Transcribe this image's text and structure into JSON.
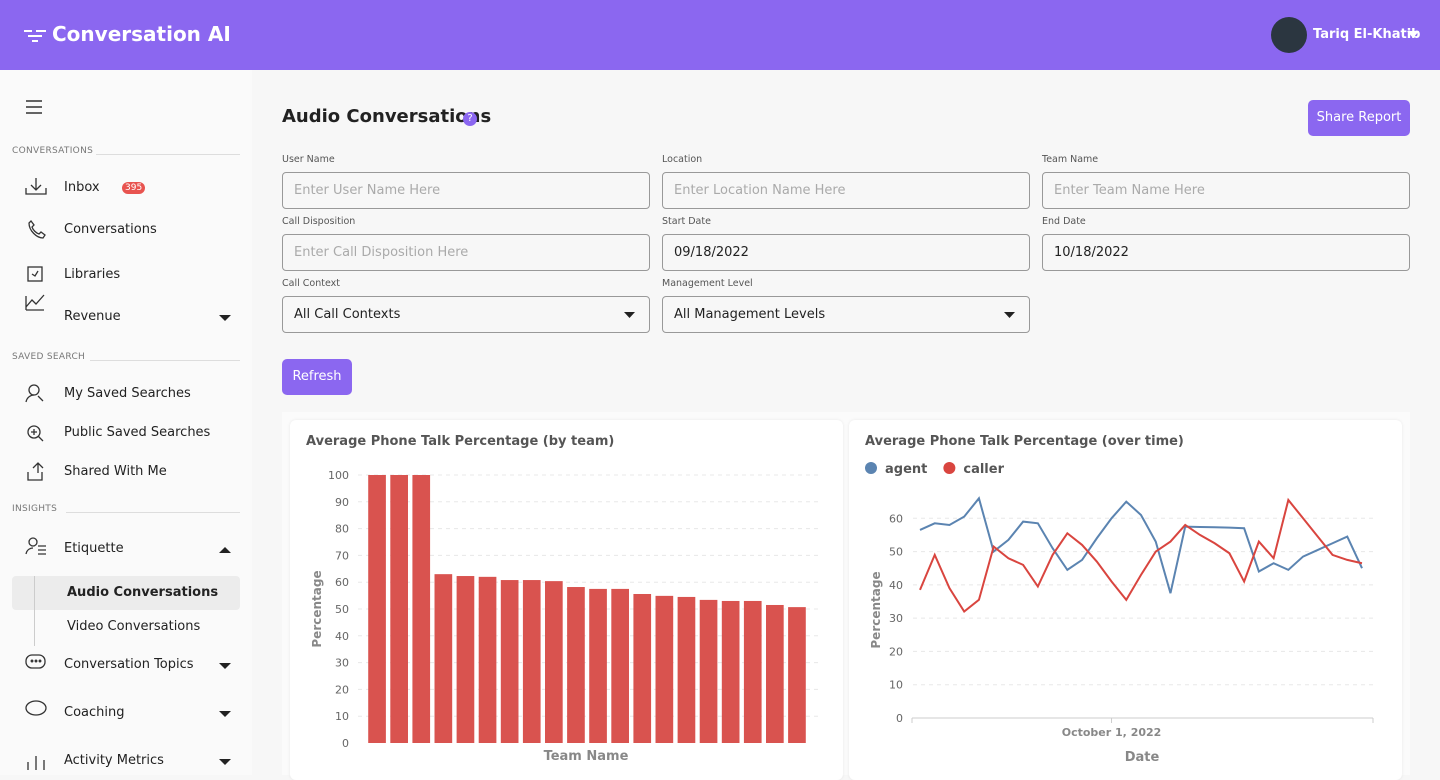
{
  "header": {
    "brand": "Conversation AI",
    "user": "Tariq El-Khatib"
  },
  "sidebar": {
    "conversations": {
      "title": "CONVERSATIONS",
      "items": [
        "Inbox",
        "Conversations",
        "Libraries",
        "Revenue"
      ],
      "badge": "395"
    },
    "saved_search": {
      "title": "SAVED SEARCH",
      "items": [
        "My Saved Searches",
        "Public Saved Searches",
        "Shared With Me"
      ]
    },
    "insights": {
      "title": "INSIGHTS",
      "items": [
        "Etiquette",
        "Conversation Topics",
        "Coaching",
        "Activity Metrics"
      ],
      "etiquette_sub": [
        "Audio Conversations",
        "Video Conversations"
      ]
    }
  },
  "page": {
    "title": "Audio Conversations",
    "share": "Share Report",
    "refresh": "Refresh"
  },
  "form": {
    "fields": [
      {
        "label": "User Name",
        "placeholder": "Enter User Name Here"
      },
      {
        "label": "Location",
        "placeholder": "Enter Location Name Here"
      },
      {
        "label": "Team Name",
        "placeholder": "Enter Team Name Here"
      },
      {
        "label": "Call Disposition",
        "placeholder": "Enter Call Disposition Here"
      },
      {
        "label": "Start Date",
        "value": "09/18/2022"
      },
      {
        "label": "End Date",
        "value": "10/18/2022"
      },
      {
        "label": "Call Context",
        "value": "All Call Contexts",
        "dropdown": true
      },
      {
        "label": "Management Level",
        "value": "All Management Levels",
        "dropdown": true
      }
    ]
  },
  "chart_data": [
    {
      "type": "bar",
      "title": "Average Phone Talk Percentage (by team)",
      "x_label": "Team Name",
      "y_label": "Percentage",
      "color": "#d9534f",
      "categories": [
        null,
        null,
        null,
        null,
        null,
        null,
        null,
        null,
        null,
        null,
        null,
        null,
        null,
        null,
        null,
        null,
        null,
        null,
        null,
        null
      ],
      "values": [
        100,
        100,
        100,
        63,
        62.3,
        62,
        60.8,
        60.8,
        60.4,
        58.2,
        57.5,
        57.5,
        55.6,
        54.9,
        54.5,
        53.4,
        53,
        53,
        51.5,
        50.7
      ],
      "ylim": [
        0,
        100
      ],
      "yticks": [
        0,
        10,
        20,
        30,
        40,
        50,
        60,
        70,
        80,
        90,
        100
      ],
      "grid": true
    },
    {
      "type": "line",
      "title": "Average Phone Talk Percentage (over time)",
      "x_label": "Date",
      "y_label": "Percentage",
      "categories": [
        null,
        null,
        null,
        null,
        null,
        null,
        null,
        null,
        null,
        null,
        null,
        null,
        null,
        "October 1, 2022",
        null,
        null,
        null,
        null,
        null,
        null,
        null,
        null,
        null,
        null,
        null,
        null,
        null,
        null,
        null,
        null,
        null
      ],
      "series": [
        {
          "name": "agent",
          "color": "#5b84b1",
          "values": [
            56.5,
            58.5,
            58,
            60.5,
            66,
            50,
            53.5,
            59,
            58.5,
            51,
            44.5,
            47.5,
            54,
            60,
            65,
            61,
            53,
            37.5,
            57.5,
            57.4,
            57.3,
            57.2,
            57,
            44,
            46.5,
            44.5,
            48.5,
            50.5,
            52.5,
            54.5,
            45
          ]
        },
        {
          "name": "caller",
          "color": "#d9453f",
          "values": [
            38.5,
            49,
            39,
            32,
            35.5,
            51.5,
            48,
            46,
            39.5,
            49,
            55.5,
            52,
            47,
            41,
            35.5,
            43,
            50,
            53,
            58,
            55,
            52.5,
            49.5,
            41,
            53,
            48,
            65.5,
            60,
            54.5,
            49,
            47.5,
            46.5
          ]
        }
      ],
      "ylim": [
        0,
        70
      ],
      "yticks": [
        0,
        10,
        20,
        30,
        40,
        50,
        60
      ],
      "grid": true,
      "legend": "top-left"
    }
  ]
}
